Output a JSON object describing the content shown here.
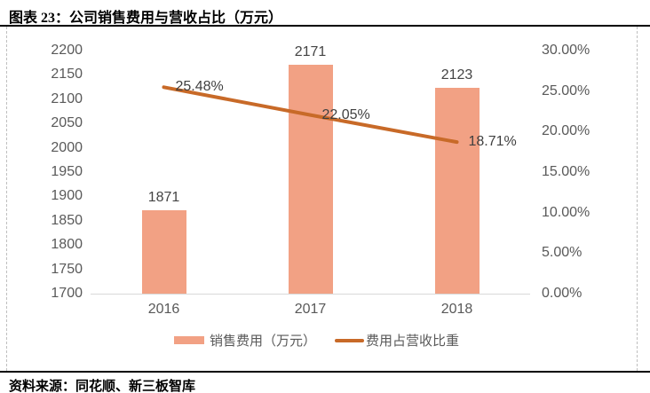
{
  "header": {
    "title": "图表 23：公司销售费用与营收占比（万元）"
  },
  "footer": {
    "source": "资料来源：同花顺、新三板智库"
  },
  "chart_data": {
    "type": "bar",
    "title": "公司销售费用与营收占比（万元）",
    "categories": [
      "2016",
      "2017",
      "2018"
    ],
    "series": [
      {
        "name": "销售费用（万元）",
        "kind": "bar",
        "axis": "left",
        "values": [
          1871,
          2171,
          2123
        ],
        "data_labels": [
          "1871",
          "2171",
          "2123"
        ],
        "color": "#F2A184"
      },
      {
        "name": "费用占营收比重",
        "kind": "line",
        "axis": "right",
        "values": [
          25.48,
          22.05,
          18.71
        ],
        "data_labels": [
          "25.48%",
          "22.05%",
          "18.71%"
        ],
        "color": "#C86A28"
      }
    ],
    "left_axis": {
      "min": 1700,
      "max": 2200,
      "step": 50,
      "tick_labels": [
        "2200",
        "2150",
        "2100",
        "2050",
        "2000",
        "1950",
        "1900",
        "1850",
        "1800",
        "1750",
        "1700"
      ]
    },
    "right_axis": {
      "min": 0,
      "max": 30,
      "step": 5,
      "tick_labels": [
        "30.00%",
        "25.00%",
        "20.00%",
        "15.00%",
        "10.00%",
        "5.00%",
        "0.00%"
      ]
    },
    "grid": false,
    "legend_position": "bottom"
  },
  "colors": {
    "bar": "#F2A184",
    "line": "#C86A28",
    "axis_text": "#595959",
    "data_label_text": "#404040",
    "baseline": "#D9D9D9",
    "dashed_border": "#BFBFBF",
    "rule": "#000000"
  }
}
